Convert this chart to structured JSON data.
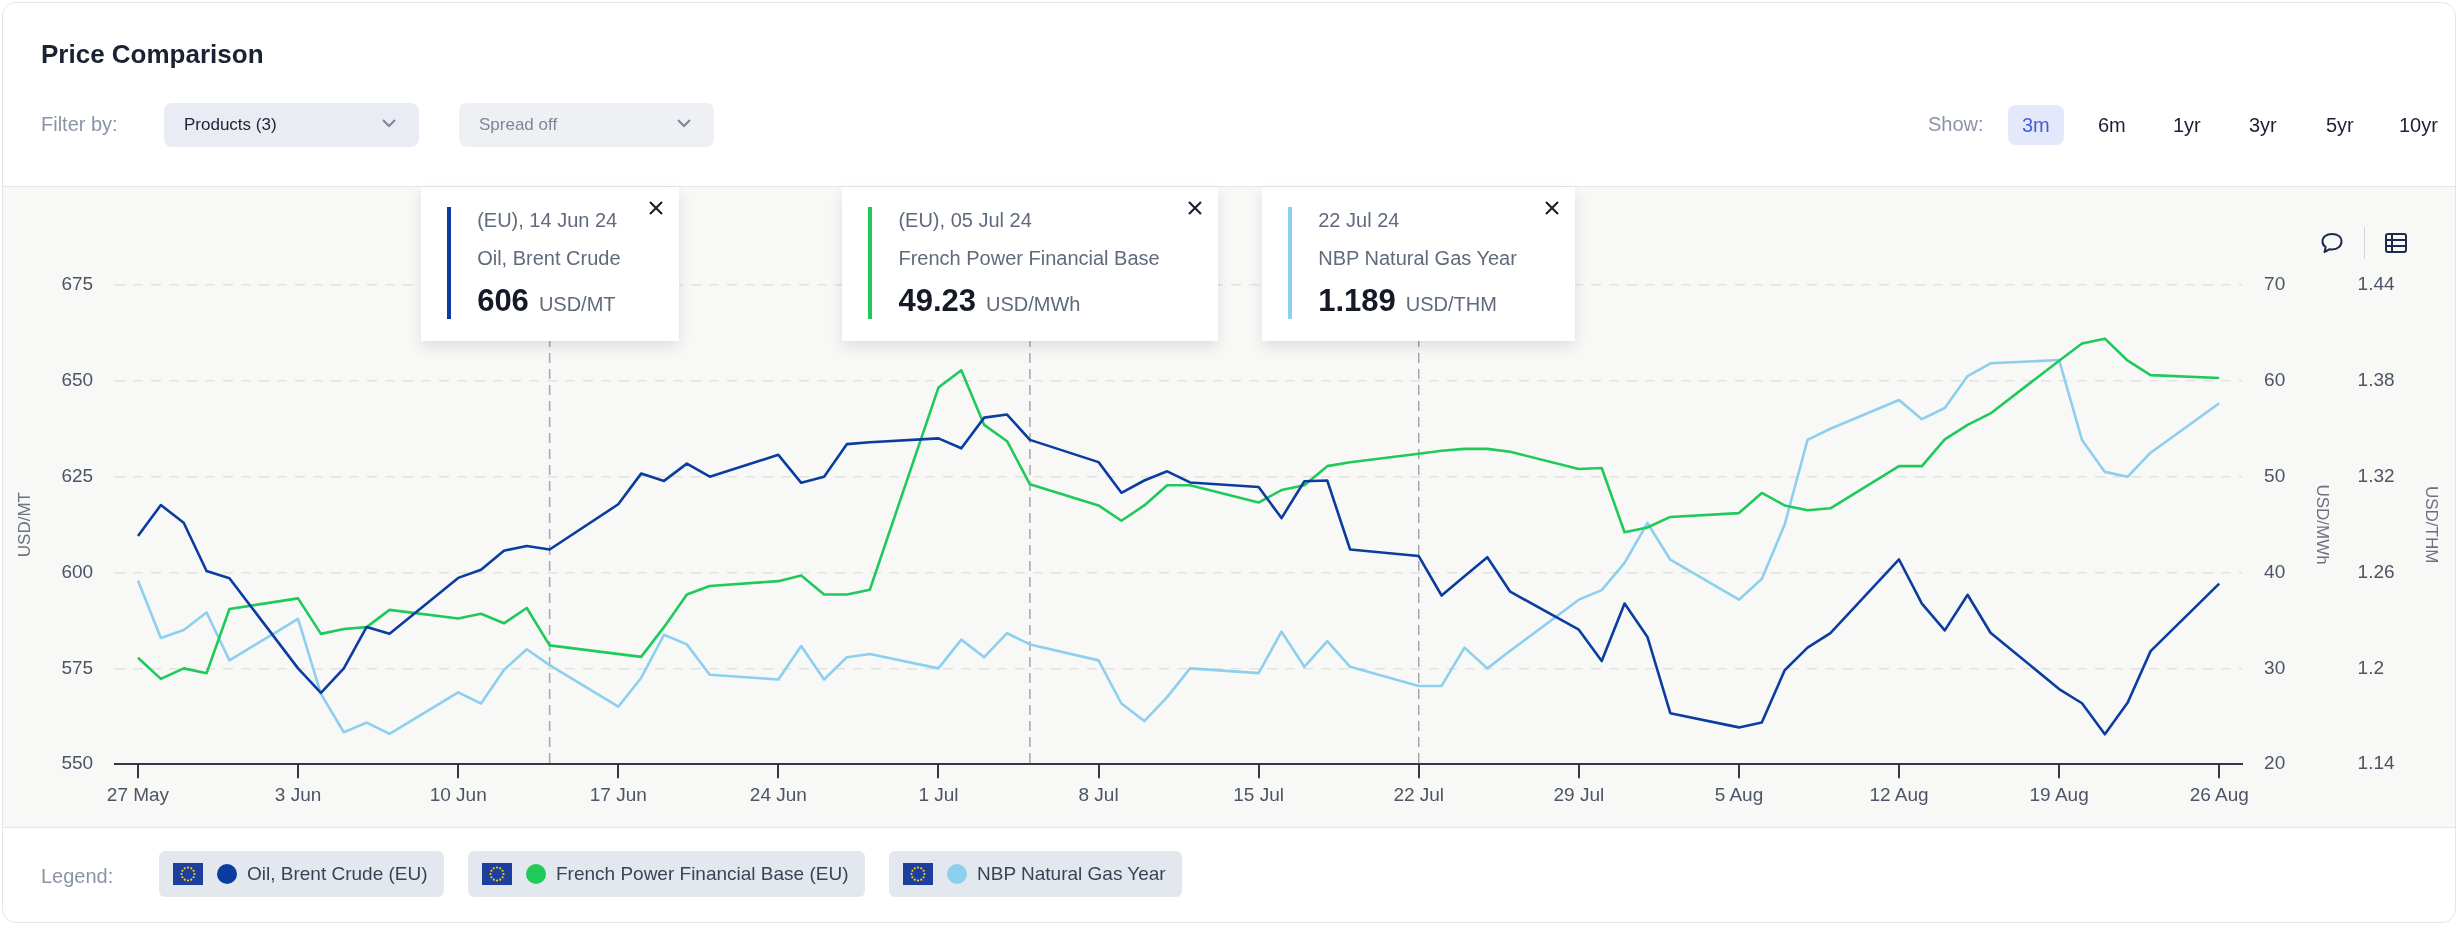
{
  "chart_data": {
    "type": "line",
    "title": "Price Comparison",
    "ylabel": "USD/MT",
    "y2label": "USD/MWh",
    "y3label": "USD/THM",
    "xlim": [
      "--05-26",
      "--08-27"
    ],
    "xticks": [
      {
        "value": "--05-27",
        "label": "27 May"
      },
      {
        "value": "--06-03",
        "label": "3 Jun"
      },
      {
        "value": "--06-10",
        "label": "10 Jun"
      },
      {
        "value": "--06-17",
        "label": "17 Jun"
      },
      {
        "value": "--06-24",
        "label": "24 Jun"
      },
      {
        "value": "--07-01",
        "label": "1 Jul"
      },
      {
        "value": "--07-08",
        "label": "8 Jul"
      },
      {
        "value": "--07-15",
        "label": "15 Jul"
      },
      {
        "value": "--07-22",
        "label": "22 Jul"
      },
      {
        "value": "--07-29",
        "label": "29 Jul"
      },
      {
        "value": "--08-05",
        "label": "5 Aug"
      },
      {
        "value": "--08-12",
        "label": "12 Aug"
      },
      {
        "value": "--08-19",
        "label": "19 Aug"
      },
      {
        "value": "--08-26",
        "label": "26 Aug"
      }
    ],
    "ylim": [
      550,
      675
    ],
    "yticks": [
      550,
      575,
      600,
      625,
      650,
      675
    ],
    "y2lim": [
      20,
      70
    ],
    "y2ticks": [
      20,
      30,
      40,
      50,
      60,
      70
    ],
    "y3lim": [
      1.14,
      1.44
    ],
    "y3ticks": [
      1.14,
      {
        "value": 1.2,
        "label": "1.2"
      },
      1.26,
      1.32,
      1.38,
      1.44
    ],
    "grid": "y",
    "legend": "bottom",
    "marker": "none",
    "line_style": "solid",
    "series": [
      {
        "name": "Oil, Brent Crude (EU)",
        "color": "#0a3d9f",
        "x": [
          "--05-27",
          "--05-28",
          "--05-29",
          "--05-30",
          "--05-31",
          "--06-03",
          "--06-04",
          "--06-05",
          "--06-06",
          "--06-07",
          "--06-10",
          "--06-11",
          "--06-12",
          "--06-13",
          "--06-14",
          "--06-17",
          "--06-18",
          "--06-19",
          "--06-20",
          "--06-21",
          "--06-24",
          "--06-25",
          "--06-26",
          "--06-27",
          "--06-28",
          "--07-01",
          "--07-02",
          "--07-03",
          "--07-04",
          "--07-05",
          "--07-08",
          "--07-09",
          "--07-10",
          "--07-11",
          "--07-12",
          "--07-15",
          "--07-16",
          "--07-17",
          "--07-18",
          "--07-19",
          "--07-22",
          "--07-23",
          "--07-24",
          "--07-25",
          "--07-26",
          "--07-29",
          "--07-30",
          "--07-31",
          "--08-01",
          "--08-02",
          "--08-05",
          "--08-06",
          "--08-07",
          "--08-08",
          "--08-09",
          "--08-12",
          "--08-13",
          "--08-14",
          "--08-15",
          "--08-16",
          "--08-19",
          "--08-20",
          "--08-21",
          "--08-22",
          "--08-23",
          "--08-26"
        ],
        "values": [
          609.5,
          617.6,
          613,
          600.4,
          598.5,
          575,
          568.6,
          575,
          585.8,
          584,
          598.6,
          600.7,
          605.7,
          606.9,
          606,
          617.8,
          625.8,
          623.9,
          628.4,
          625,
          630.7,
          623.4,
          625,
          633.5,
          634,
          635,
          632.4,
          640.4,
          641.2,
          634.6,
          628.8,
          620.8,
          624,
          626.4,
          623.5,
          622.3,
          614.2,
          623.8,
          624,
          606,
          604.3,
          594,
          599,
          604,
          595,
          585.1,
          576.9,
          591.9,
          583.2,
          563.3,
          559.6,
          560.9,
          574.5,
          580.4,
          584.2,
          603.4,
          591.9,
          584.9,
          594.2,
          584.3,
          569.6,
          565.9,
          557.8,
          566.1,
          579.5,
          597.1
        ]
      },
      {
        "name": "French Power Financial Base (EU)",
        "color": "#1fc95a",
        "axis": "y2",
        "x": [
          "--05-27",
          "--05-28",
          "--05-29",
          "--05-30",
          "--05-31",
          "--06-03",
          "--06-04",
          "--06-05",
          "--06-06",
          "--06-07",
          "--06-10",
          "--06-11",
          "--06-12",
          "--06-13",
          "--06-14",
          "--06-18",
          "--06-19",
          "--06-20",
          "--06-21",
          "--06-24",
          "--06-25",
          "--06-26",
          "--06-27",
          "--06-28",
          "--07-01",
          "--07-02",
          "--07-03",
          "--07-04",
          "--07-05",
          "--07-08",
          "--07-09",
          "--07-10",
          "--07-11",
          "--07-12",
          "--07-15",
          "--07-16",
          "--07-17",
          "--07-18",
          "--07-19",
          "--07-22",
          "--07-23",
          "--07-24",
          "--07-25",
          "--07-26",
          "--07-29",
          "--07-30",
          "--07-31",
          "--08-01",
          "--08-02",
          "--08-05",
          "--08-06",
          "--08-07",
          "--08-08",
          "--08-09",
          "--08-12",
          "--08-13",
          "--08-14",
          "--08-15",
          "--08-16",
          "--08-19",
          "--08-20",
          "--08-21",
          "--08-22",
          "--08-23",
          "--08-26"
        ],
        "values": [
          31.1,
          28.9,
          30,
          29.5,
          36.2,
          37.3,
          33.6,
          34.1,
          34.3,
          36.1,
          35.2,
          35.7,
          34.7,
          36.3,
          32.4,
          31.2,
          34.3,
          37.7,
          38.6,
          39.1,
          39.7,
          37.7,
          37.7,
          38.2,
          59.3,
          61.1,
          55.4,
          53.7,
          49.2,
          47,
          45.4,
          47,
          49.1,
          49.1,
          47.3,
          48.6,
          49.1,
          51.1,
          51.5,
          52.4,
          52.7,
          52.9,
          52.9,
          52.6,
          50.8,
          50.9,
          44.2,
          44.7,
          45.8,
          46.2,
          48.3,
          47,
          46.5,
          46.7,
          51.1,
          51.1,
          53.9,
          55.4,
          56.6,
          62.1,
          63.9,
          64.4,
          62.1,
          60.6,
          60.3
        ]
      },
      {
        "name": "NBP Natural Gas Year",
        "color": "#8ccfef",
        "axis": "y3",
        "x": [
          "--05-27",
          "--05-28",
          "--05-29",
          "--05-30",
          "--05-31",
          "--06-03",
          "--06-04",
          "--06-05",
          "--06-06",
          "--06-07",
          "--06-10",
          "--06-11",
          "--06-12",
          "--06-13",
          "--06-14",
          "--06-17",
          "--06-18",
          "--06-19",
          "--06-20",
          "--06-21",
          "--06-24",
          "--06-25",
          "--06-26",
          "--06-27",
          "--06-28",
          "--07-01",
          "--07-02",
          "--07-03",
          "--07-04",
          "--07-05",
          "--07-08",
          "--07-09",
          "--07-10",
          "--07-11",
          "--07-12",
          "--07-15",
          "--07-16",
          "--07-17",
          "--07-18",
          "--07-19",
          "--07-22",
          "--07-23",
          "--07-24",
          "--07-25",
          "--07-26",
          "--07-29",
          "--07-30",
          "--07-31",
          "--08-01",
          "--08-02",
          "--08-05",
          "--08-06",
          "--08-07",
          "--08-08",
          "--08-09",
          "--08-12",
          "--08-13",
          "--08-14",
          "--08-15",
          "--08-16",
          "--08-19",
          "--08-20",
          "--08-21",
          "--08-22",
          "--08-23",
          "--08-26"
        ],
        "values": [
          1.255,
          1.219,
          1.224,
          1.235,
          1.205,
          1.231,
          1.184,
          1.16,
          1.166,
          1.159,
          1.185,
          1.178,
          1.199,
          1.212,
          1.202,
          1.176,
          1.194,
          1.221,
          1.215,
          1.196,
          1.193,
          1.214,
          1.193,
          1.207,
          1.209,
          1.2,
          1.218,
          1.207,
          1.222,
          1.215,
          1.205,
          1.178,
          1.167,
          1.182,
          1.2,
          1.197,
          1.223,
          1.201,
          1.217,
          1.201,
          1.189,
          1.189,
          1.213,
          1.2,
          1.211,
          1.243,
          1.249,
          1.266,
          1.291,
          1.268,
          1.243,
          1.256,
          1.29,
          1.343,
          1.35,
          1.368,
          1.356,
          1.363,
          1.383,
          1.391,
          1.393,
          1.343,
          1.323,
          1.32,
          1.335,
          1.366
        ]
      }
    ],
    "ref_lines": [
      {
        "axis": "x",
        "value": "--06-14",
        "label": "(EU), 14 Jun 24\nOil, Brent Crude\n606 USD/MT",
        "color": "#a3a8b0",
        "line_style": "dashed"
      },
      {
        "axis": "x",
        "value": "--07-05",
        "label": "(EU), 05 Jul 24\nFrench Power Financial Base\n49.23 USD/MWh",
        "color": "#a3a8b0",
        "line_style": "dashed"
      },
      {
        "axis": "x",
        "value": "--07-22",
        "label": "22 Jul 24\nNBP Natural Gas Year\n1.189 USD/THM",
        "color": "#a3a8b0",
        "line_style": "dashed"
      }
    ],
    "annotations": [
      "Filter by:",
      "Products (3)",
      "Spread off",
      "Show:",
      "3m",
      "6m",
      "1yr",
      "3yr",
      "5yr",
      "10yr",
      "Legend:"
    ]
  }
}
